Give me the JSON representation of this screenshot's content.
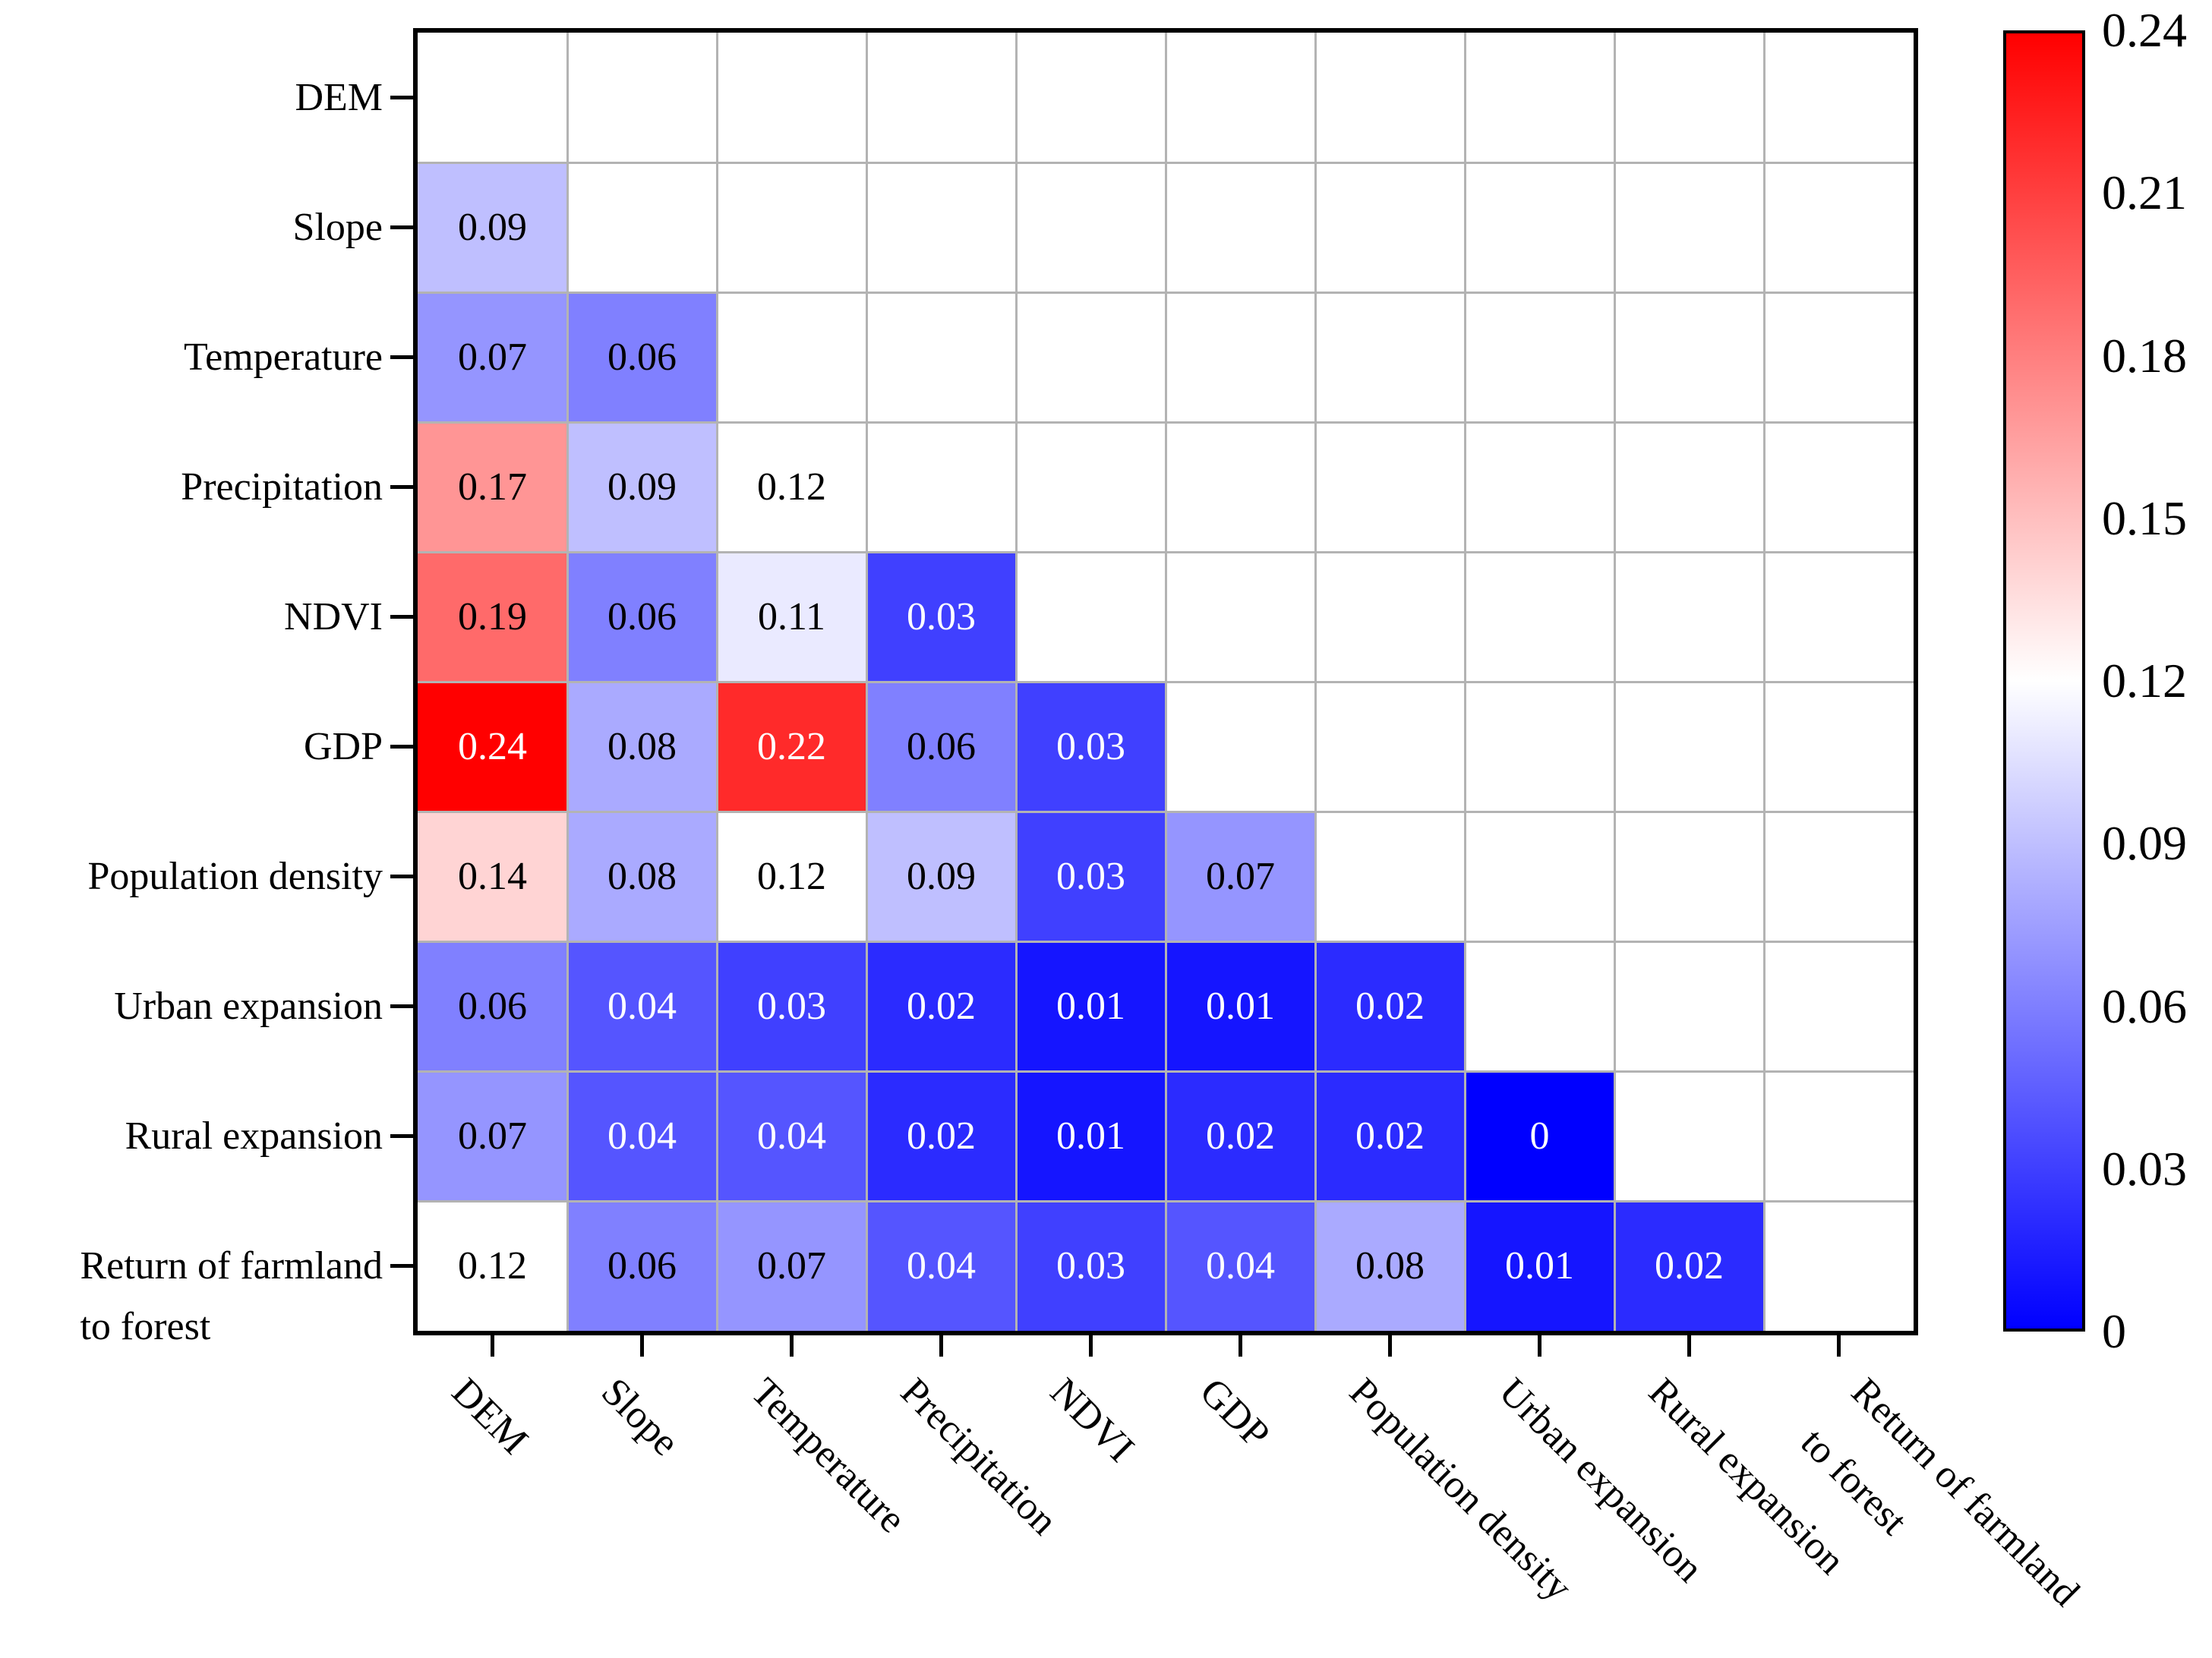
{
  "chart_data": {
    "type": "heatmap",
    "title": "",
    "description": "Lower-triangular interaction/correlation heatmap of driving factors",
    "categories": [
      "DEM",
      "Slope",
      "Temperature",
      "Precipitation",
      "NDVI",
      "GDP",
      "Population density",
      "Urban expansion",
      "Rural expansion",
      "Return of farmland\nto forest"
    ],
    "matrix": [
      [
        null,
        null,
        null,
        null,
        null,
        null,
        null,
        null,
        null,
        null
      ],
      [
        0.09,
        null,
        null,
        null,
        null,
        null,
        null,
        null,
        null,
        null
      ],
      [
        0.07,
        0.06,
        null,
        null,
        null,
        null,
        null,
        null,
        null,
        null
      ],
      [
        0.17,
        0.09,
        0.12,
        null,
        null,
        null,
        null,
        null,
        null,
        null
      ],
      [
        0.19,
        0.06,
        0.11,
        0.03,
        null,
        null,
        null,
        null,
        null,
        null
      ],
      [
        0.24,
        0.08,
        0.22,
        0.06,
        0.03,
        null,
        null,
        null,
        null,
        null
      ],
      [
        0.14,
        0.08,
        0.12,
        0.09,
        0.03,
        0.07,
        null,
        null,
        null,
        null
      ],
      [
        0.06,
        0.04,
        0.03,
        0.02,
        0.01,
        0.01,
        0.02,
        null,
        null,
        null
      ],
      [
        0.07,
        0.04,
        0.04,
        0.02,
        0.01,
        0.02,
        0.02,
        0,
        null,
        null
      ],
      [
        0.12,
        0.06,
        0.07,
        0.04,
        0.03,
        0.04,
        0.08,
        0.01,
        0.02,
        null
      ]
    ],
    "colorbar": {
      "min": 0,
      "max": 0.24,
      "tick_values": [
        0.24,
        0.21,
        0.18,
        0.15,
        0.12,
        0.09,
        0.06,
        0.03,
        0
      ],
      "tick_labels": [
        "0.24",
        "0.21",
        "0.18",
        "0.15",
        "0.12",
        "0.09",
        "0.06",
        "0.03",
        "0"
      ],
      "colormap": "blue-white-red",
      "color_high": "#ff0000",
      "color_mid": "#ffffff",
      "color_low": "#0000ff",
      "position": "right"
    },
    "layout": {
      "grid": "on",
      "grid_color": "#b3b3b3",
      "frame_color": "#000000",
      "background": "#ffffff",
      "x_label_rotation_deg": 45,
      "lower_triangle_only": true
    }
  }
}
